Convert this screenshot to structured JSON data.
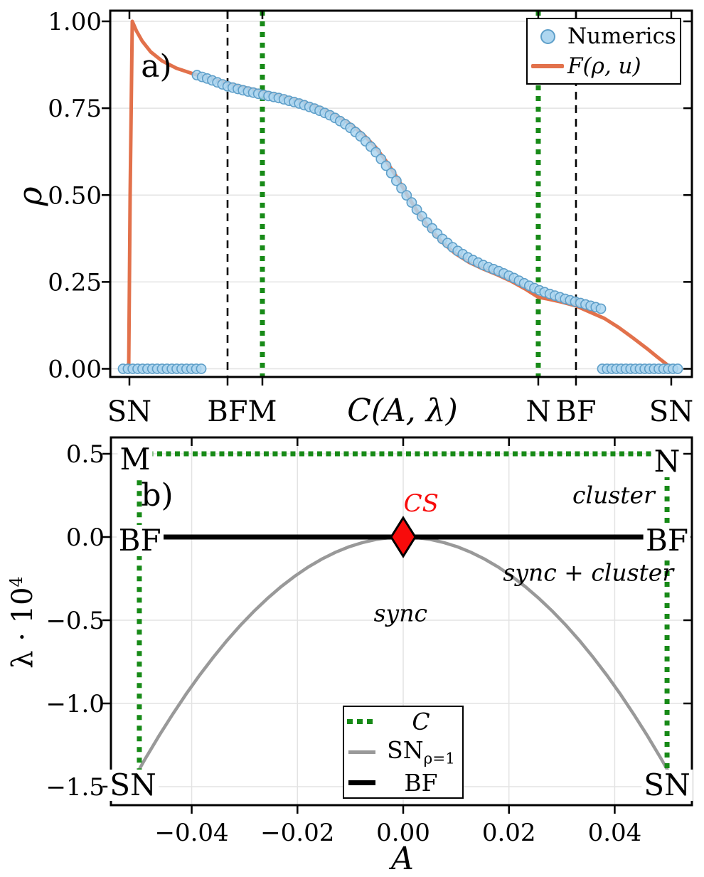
{
  "style": {
    "background": "#ffffff",
    "accent_orange": "#E2714B",
    "marker_blue_fill": "#AED6F0",
    "marker_blue_edge": "#5E9FC9",
    "curve_green": "#178A17",
    "curve_gray": "#999999",
    "marker_red": "#F80B0B",
    "grid_color": "#E3E3E3",
    "axis_color": "#000000"
  },
  "chart_data": [
    {
      "id": "a",
      "type": "line+scatter",
      "panel_label": "a)",
      "xlabel": "C(A, λ)",
      "ylabel": "ρ",
      "ylim": [
        0,
        1
      ],
      "grid": "horizontal",
      "yticks": {
        "values": [
          0,
          0.25,
          0.5,
          0.75,
          1.0
        ],
        "labels": [
          "0.00",
          "0.25",
          "0.50",
          "0.75",
          "1.00"
        ]
      },
      "xticks": {
        "positions": [
          0.033,
          0.2017,
          0.2616,
          0.7359,
          0.8007,
          0.9645
        ],
        "labels": [
          "SN",
          "BF",
          "M",
          "N",
          "BF",
          "SN"
        ]
      },
      "vlines": [
        {
          "pos": 0.2017,
          "style": "dashed",
          "label": "BF"
        },
        {
          "pos": 0.2616,
          "style": "dotted",
          "label": "M"
        },
        {
          "pos": 0.7359,
          "style": "dotted",
          "label": "N"
        },
        {
          "pos": 0.8007,
          "style": "dashed",
          "label": "BF"
        }
      ],
      "series": [
        {
          "name": "Numerics",
          "type": "scatter",
          "segments": [
            {
              "desc": "incoherent branch left",
              "x_range": [
                0.022,
                0.1565
              ],
              "rho": 0,
              "n": 17
            },
            {
              "desc": "partially synchronized branch",
              "n": 80,
              "points": [
                [
                  0.1491,
                  0.845
                ],
                [
                  0.1711,
                  0.833
                ],
                [
                  0.2017,
                  0.813
                ],
                [
                  0.2323,
                  0.8
                ],
                [
                  0.2616,
                  0.789
                ],
                [
                  0.2934,
                  0.778
                ],
                [
                  0.324,
                  0.764
                ],
                [
                  0.3545,
                  0.747
                ],
                [
                  0.3826,
                  0.726
                ],
                [
                  0.4095,
                  0.698
                ],
                [
                  0.434,
                  0.664
                ],
                [
                  0.456,
                  0.625
                ],
                [
                  0.4768,
                  0.579
                ],
                [
                  0.4951,
                  0.533
                ],
                [
                  0.5134,
                  0.49
                ],
                [
                  0.5318,
                  0.447
                ],
                [
                  0.5501,
                  0.41
                ],
                [
                  0.5709,
                  0.374
                ],
                [
                  0.5929,
                  0.344
                ],
                [
                  0.6174,
                  0.318
                ],
                [
                  0.6418,
                  0.298
                ],
                [
                  0.6663,
                  0.282
                ],
                [
                  0.6907,
                  0.264
                ],
                [
                  0.7152,
                  0.243
                ],
                [
                  0.7359,
                  0.227
                ],
                [
                  0.7579,
                  0.214
                ],
                [
                  0.7824,
                  0.201
                ],
                [
                  0.8068,
                  0.19
                ],
                [
                  0.8313,
                  0.179
                ],
                [
                  0.8435,
                  0.173
                ]
              ]
            },
            {
              "desc": "incoherent branch right",
              "x_range": [
                0.846,
                0.9756
              ],
              "rho": 0,
              "n": 17
            }
          ]
        },
        {
          "name": "F(ρ, u)",
          "type": "line",
          "points": [
            [
              0.0318,
              0.0
            ],
            [
              0.0342,
              0.5
            ],
            [
              0.0379,
              1.0
            ],
            [
              0.0452,
              0.972
            ],
            [
              0.055,
              0.943
            ],
            [
              0.0697,
              0.912
            ],
            [
              0.0892,
              0.886
            ],
            [
              0.1137,
              0.865
            ],
            [
              0.1406,
              0.85
            ],
            [
              0.1711,
              0.836
            ],
            [
              0.2017,
              0.822
            ],
            [
              0.2323,
              0.809
            ],
            [
              0.2616,
              0.798
            ],
            [
              0.2934,
              0.786
            ],
            [
              0.324,
              0.772
            ],
            [
              0.3545,
              0.754
            ],
            [
              0.3826,
              0.734
            ],
            [
              0.4095,
              0.708
            ],
            [
              0.434,
              0.676
            ],
            [
              0.456,
              0.638
            ],
            [
              0.4768,
              0.592
            ],
            [
              0.4951,
              0.545
            ],
            [
              0.5134,
              0.492
            ],
            [
              0.5318,
              0.443
            ],
            [
              0.5501,
              0.402
            ],
            [
              0.5709,
              0.364
            ],
            [
              0.5929,
              0.332
            ],
            [
              0.6174,
              0.306
            ],
            [
              0.6418,
              0.287
            ],
            [
              0.6663,
              0.27
            ],
            [
              0.6907,
              0.251
            ],
            [
              0.7152,
              0.228
            ],
            [
              0.7359,
              0.206
            ],
            [
              0.7518,
              0.201
            ],
            [
              0.7762,
              0.192
            ],
            [
              0.8007,
              0.181
            ],
            [
              0.8252,
              0.163
            ],
            [
              0.8496,
              0.145
            ],
            [
              0.8741,
              0.119
            ],
            [
              0.8985,
              0.089
            ],
            [
              0.923,
              0.058
            ],
            [
              0.9413,
              0.033
            ],
            [
              0.9572,
              0.012
            ],
            [
              0.9645,
              0.002
            ]
          ]
        }
      ],
      "legend": {
        "position": "upper right",
        "items": [
          "Numerics",
          "F(ρ, u)"
        ]
      }
    },
    {
      "id": "b",
      "type": "line",
      "panel_label": "b)",
      "xlabel": "A",
      "ylabel_base": "λ · 10",
      "ylabel_sup": "4",
      "xlim": [
        -0.055,
        0.0546
      ],
      "ylim": [
        -1.6,
        0.57
      ],
      "grid": "both",
      "xticks": {
        "values": [
          -0.04,
          -0.02,
          0,
          0.02,
          0.04
        ],
        "labels": [
          "−0.04",
          "−0.02",
          "0.00",
          "0.02",
          "0.04"
        ]
      },
      "yticks": {
        "values": [
          0.5,
          0,
          -0.5,
          -1,
          -1.5
        ],
        "labels": [
          "0.5",
          "0.0",
          "−0.5",
          "−1.0",
          "−1.5"
        ]
      },
      "series": [
        {
          "name": "C",
          "type": "polyline",
          "style": "dotted",
          "points": [
            [
              -0.0499,
              -1.42
            ],
            [
              -0.0499,
              0.5
            ],
            [
              0.0499,
              0.5
            ],
            [
              0.0499,
              -1.42
            ]
          ]
        },
        {
          "name": "SN",
          "subscript": "ρ=1",
          "type": "parabola",
          "equation": "λ = −1.4·(A/0.05)²",
          "peak": [
            0,
            0
          ],
          "x_range": [
            -0.0513,
            0.0513
          ],
          "coeff": -1.4,
          "half_width": 0.05
        },
        {
          "name": "BF",
          "type": "line",
          "points": [
            [
              -0.0454,
              0
            ],
            [
              0.0454,
              0
            ]
          ]
        },
        {
          "name": "CS",
          "type": "point",
          "marker": "thin-diamond",
          "point": [
            0,
            0
          ]
        }
      ],
      "annotations": [
        {
          "text": "M",
          "x": -0.0507,
          "y": 0.467,
          "style": "corner"
        },
        {
          "text": "N",
          "x": 0.0499,
          "y": 0.455,
          "style": "corner"
        },
        {
          "text": "BF",
          "x": -0.0498,
          "y": -0.021,
          "style": "corner"
        },
        {
          "text": "BF",
          "x": 0.0499,
          "y": -0.021,
          "style": "corner"
        },
        {
          "text": "SN",
          "x": -0.0511,
          "y": -1.492,
          "style": "corner"
        },
        {
          "text": "SN",
          "x": 0.0499,
          "y": -1.492,
          "style": "corner"
        },
        {
          "text": "CS",
          "x": 0.0034,
          "y": 0.195,
          "style": "cs"
        },
        {
          "text": "cluster",
          "x": 0.0398,
          "y": 0.248,
          "style": "region"
        },
        {
          "text": "sync + cluster",
          "x": 0.035,
          "y": -0.218,
          "style": "region"
        },
        {
          "text": "sync",
          "x": -0.0005,
          "y": -0.462,
          "style": "region"
        }
      ],
      "legend": {
        "position": "lower center",
        "items": [
          {
            "label": "C"
          },
          {
            "label": "SN",
            "sub": "ρ=1"
          },
          {
            "label": "BF"
          }
        ]
      }
    }
  ]
}
